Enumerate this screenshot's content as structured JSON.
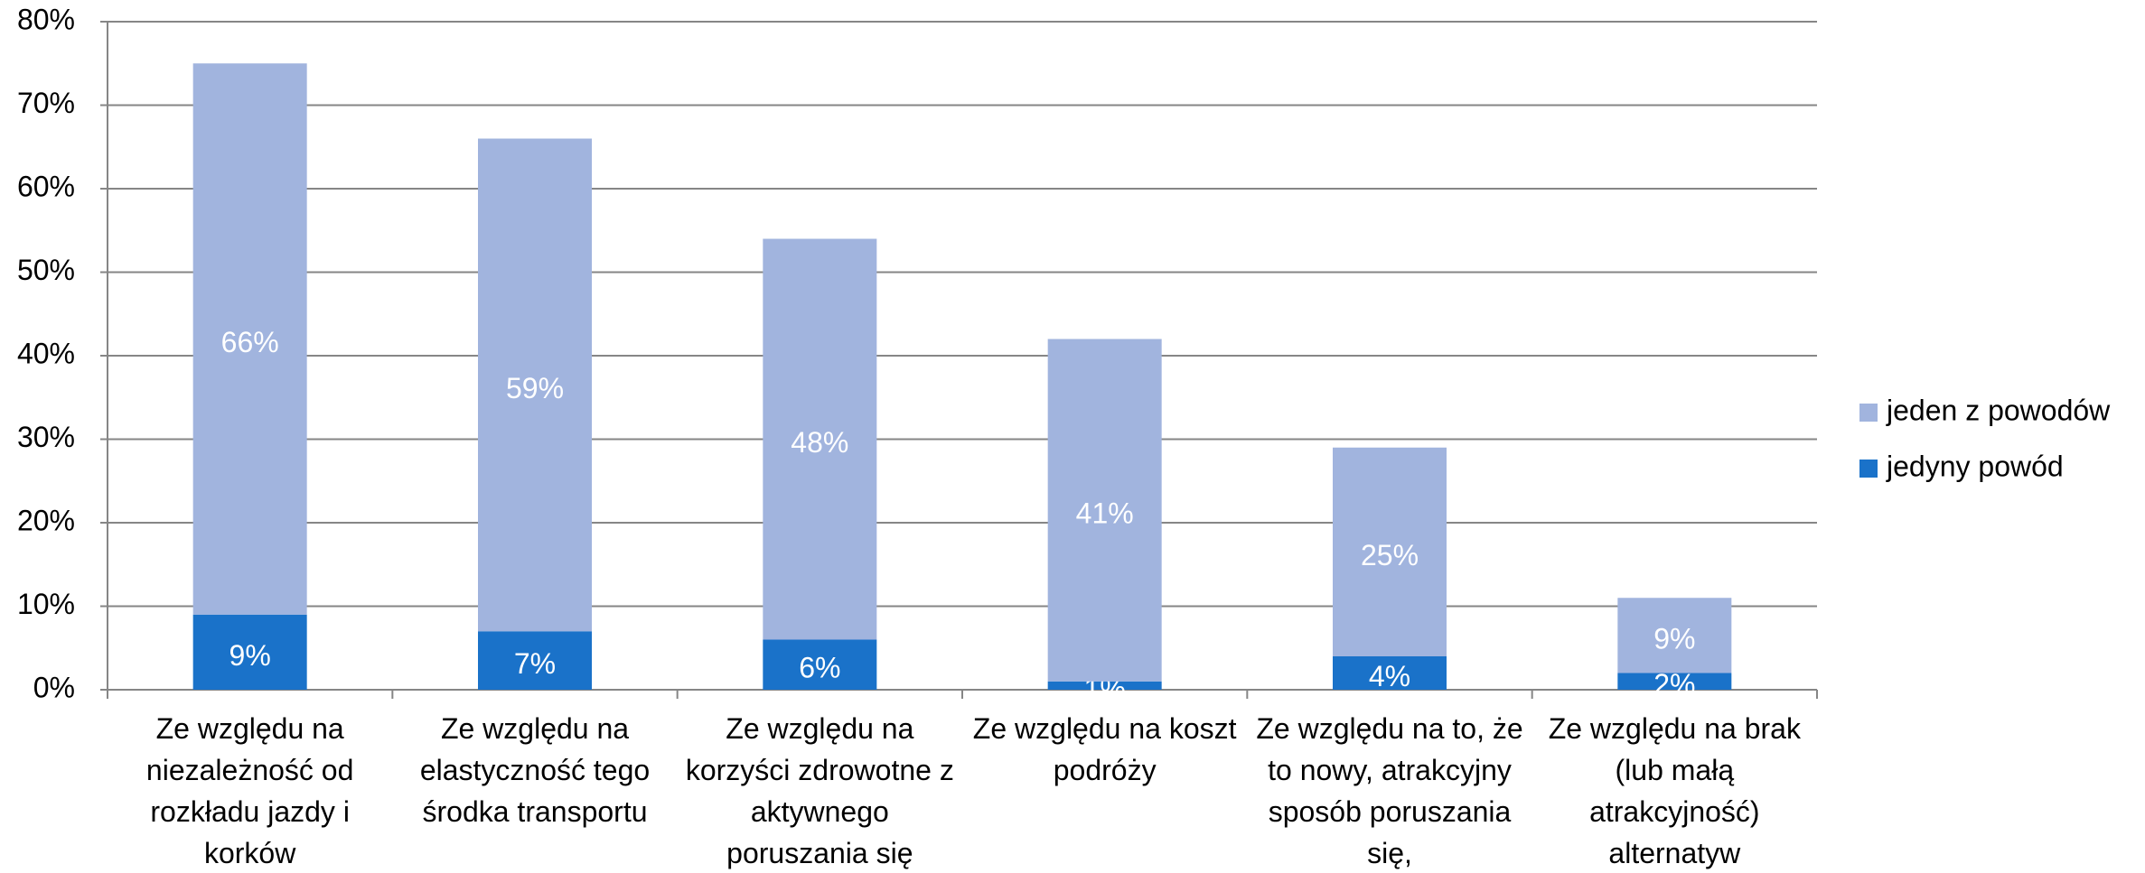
{
  "chart_data": {
    "type": "stacked_bar",
    "categories": [
      "Ze względu na niezależność od rozkładu jazdy i korków",
      "Ze względu na elastyczność tego środka transportu",
      "Ze względu na korzyści zdrowotne z aktywnego poruszania się",
      "Ze względu na koszt podróży",
      "Ze względu na to, że to nowy, atrakcyjny sposób poruszania się,",
      "Ze względu na brak (lub małą atrakcyjność) alternatyw"
    ],
    "series": [
      {
        "name": "jedyny powód",
        "color": "#1a72c9",
        "values": [
          9,
          7,
          6,
          1,
          4,
          2
        ],
        "value_labels": [
          "9%",
          "7%",
          "6%",
          "1%",
          "4%",
          "2%"
        ]
      },
      {
        "name": "jeden z powodów",
        "color": "#a1b4de",
        "values": [
          66,
          59,
          48,
          41,
          25,
          9
        ],
        "value_labels": [
          "66%",
          "59%",
          "48%",
          "41%",
          "25%",
          "9%"
        ]
      }
    ],
    "ylim": [
      0,
      80
    ],
    "yticks": [
      {
        "value": 0,
        "label": "0%"
      },
      {
        "value": 10,
        "label": "10%"
      },
      {
        "value": 20,
        "label": "20%"
      },
      {
        "value": 30,
        "label": "30%"
      },
      {
        "value": 40,
        "label": "40%"
      },
      {
        "value": 50,
        "label": "50%"
      },
      {
        "value": 60,
        "label": "60%"
      },
      {
        "value": 70,
        "label": "70%"
      },
      {
        "value": 80,
        "label": "80%"
      }
    ],
    "grid": true,
    "legend": "right"
  }
}
